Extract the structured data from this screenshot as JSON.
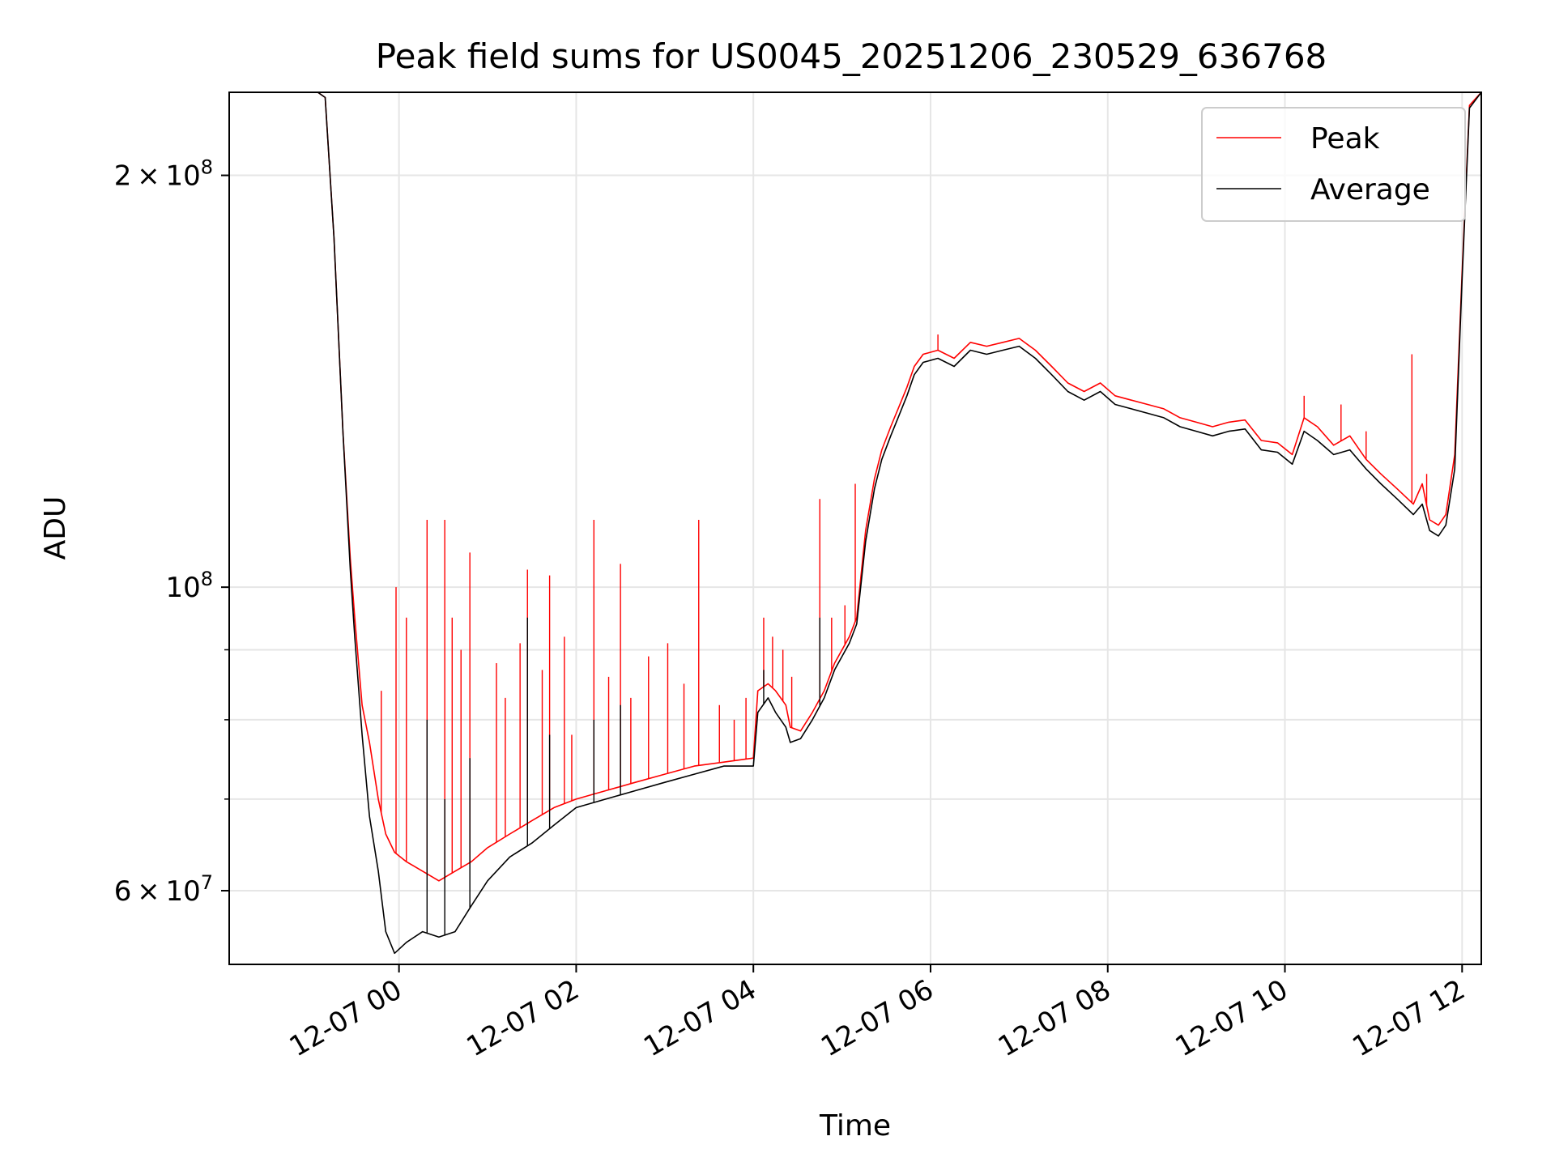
{
  "chart_data": {
    "type": "line",
    "title": "Peak field sums for US0045_20251206_230529_636768",
    "xlabel": "Time",
    "ylabel": "ADU",
    "yscale": "log",
    "xlim": [
      "12-06 22:05",
      "12-07 12:13"
    ],
    "ylim": [
      53000000,
      230000000
    ],
    "grid": true,
    "legend_position": "top-right",
    "x_ticks": [
      {
        "value": "12-07 00:00",
        "label": "12-07 00"
      },
      {
        "value": "12-07 02:00",
        "label": "12-07 02"
      },
      {
        "value": "12-07 04:00",
        "label": "12-07 04"
      },
      {
        "value": "12-07 06:00",
        "label": "12-07 06"
      },
      {
        "value": "12-07 08:00",
        "label": "12-07 08"
      },
      {
        "value": "12-07 10:00",
        "label": "12-07 10"
      },
      {
        "value": "12-07 12:00",
        "label": "12-07 12"
      }
    ],
    "y_ticks_major": [
      {
        "value": 60000000,
        "mantissa": "6",
        "exponent": "7"
      },
      {
        "value": 100000000,
        "mantissa": "",
        "exponent": "8"
      },
      {
        "value": 200000000,
        "mantissa": "2",
        "exponent": "8"
      }
    ],
    "y_ticks_minor": [
      70000000,
      80000000,
      90000000
    ],
    "series": [
      {
        "name": "Peak",
        "color": "#ff0000",
        "points": [
          [
            "12-06 23:05",
            230000000
          ],
          [
            "12-06 23:10",
            228000000
          ],
          [
            "12-06 23:16",
            180000000
          ],
          [
            "12-06 23:22",
            130000000
          ],
          [
            "12-06 23:27",
            105000000
          ],
          [
            "12-06 23:30",
            95000000
          ],
          [
            "12-06 23:35",
            82000000
          ],
          [
            "12-06 23:40",
            77000000
          ],
          [
            "12-06 23:46",
            70000000
          ],
          [
            "12-06 23:51",
            66000000
          ],
          [
            "12-06 23:57",
            64000000
          ],
          [
            "12-07 00:05",
            63000000
          ],
          [
            "12-07 00:16",
            62000000
          ],
          [
            "12-07 00:27",
            61000000
          ],
          [
            "12-07 00:38",
            62000000
          ],
          [
            "12-07 00:49",
            63000000
          ],
          [
            "12-07 01:00",
            64500000
          ],
          [
            "12-07 01:15",
            66000000
          ],
          [
            "12-07 01:30",
            67500000
          ],
          [
            "12-07 01:45",
            69000000
          ],
          [
            "12-07 02:00",
            70000000
          ],
          [
            "12-07 02:20",
            71000000
          ],
          [
            "12-07 02:40",
            72000000
          ],
          [
            "12-07 03:00",
            73000000
          ],
          [
            "12-07 03:20",
            74000000
          ],
          [
            "12-07 03:40",
            74500000
          ],
          [
            "12-07 04:00",
            75000000
          ],
          [
            "12-07 04:03",
            84000000
          ],
          [
            "12-07 04:10",
            85000000
          ],
          [
            "12-07 04:15",
            84000000
          ],
          [
            "12-07 04:22",
            82000000
          ],
          [
            "12-07 04:25",
            79000000
          ],
          [
            "12-07 04:32",
            78500000
          ],
          [
            "12-07 04:40",
            81000000
          ],
          [
            "12-07 04:48",
            84000000
          ],
          [
            "12-07 04:55",
            88000000
          ],
          [
            "12-07 05:05",
            92000000
          ],
          [
            "12-07 05:10",
            95000000
          ],
          [
            "12-07 05:16",
            110000000
          ],
          [
            "12-07 05:22",
            120000000
          ],
          [
            "12-07 05:27",
            126000000
          ],
          [
            "12-07 05:33",
            131000000
          ],
          [
            "12-07 05:38",
            135000000
          ],
          [
            "12-07 05:44",
            140000000
          ],
          [
            "12-07 05:49",
            145000000
          ],
          [
            "12-07 05:55",
            148000000
          ],
          [
            "12-07 06:05",
            149000000
          ],
          [
            "12-07 06:16",
            147000000
          ],
          [
            "12-07 06:27",
            151000000
          ],
          [
            "12-07 06:38",
            150000000
          ],
          [
            "12-07 06:49",
            151000000
          ],
          [
            "12-07 07:00",
            152000000
          ],
          [
            "12-07 07:11",
            149000000
          ],
          [
            "12-07 07:22",
            145000000
          ],
          [
            "12-07 07:33",
            141000000
          ],
          [
            "12-07 07:44",
            139000000
          ],
          [
            "12-07 07:55",
            141000000
          ],
          [
            "12-07 08:05",
            138000000
          ],
          [
            "12-07 08:16",
            137000000
          ],
          [
            "12-07 08:27",
            136000000
          ],
          [
            "12-07 08:38",
            135000000
          ],
          [
            "12-07 08:49",
            133000000
          ],
          [
            "12-07 09:00",
            132000000
          ],
          [
            "12-07 09:11",
            131000000
          ],
          [
            "12-07 09:22",
            132000000
          ],
          [
            "12-07 09:33",
            132500000
          ],
          [
            "12-07 09:44",
            128000000
          ],
          [
            "12-07 09:55",
            127500000
          ],
          [
            "12-07 10:05",
            125000000
          ],
          [
            "12-07 10:13",
            133000000
          ],
          [
            "12-07 10:22",
            131000000
          ],
          [
            "12-07 10:33",
            127000000
          ],
          [
            "12-07 10:44",
            129000000
          ],
          [
            "12-07 10:55",
            124000000
          ],
          [
            "12-07 11:05",
            121000000
          ],
          [
            "12-07 11:16",
            118000000
          ],
          [
            "12-07 11:27",
            115000000
          ],
          [
            "12-07 11:33",
            119000000
          ],
          [
            "12-07 11:38",
            112000000
          ],
          [
            "12-07 11:44",
            111000000
          ],
          [
            "12-07 11:49",
            113000000
          ],
          [
            "12-07 11:55",
            125000000
          ],
          [
            "12-07 12:00",
            170000000
          ],
          [
            "12-07 12:05",
            225000000
          ],
          [
            "12-07 12:13",
            230000000
          ]
        ],
        "spikes": [
          [
            "12-06 23:48",
            84000000
          ],
          [
            "12-06 23:58",
            100000000
          ],
          [
            "12-07 00:05",
            95000000
          ],
          [
            "12-07 00:19",
            112000000
          ],
          [
            "12-07 00:31",
            112000000
          ],
          [
            "12-07 00:36",
            95000000
          ],
          [
            "12-07 00:42",
            90000000
          ],
          [
            "12-07 00:48",
            106000000
          ],
          [
            "12-07 01:06",
            88000000
          ],
          [
            "12-07 01:12",
            83000000
          ],
          [
            "12-07 01:22",
            91000000
          ],
          [
            "12-07 01:27",
            103000000
          ],
          [
            "12-07 01:37",
            87000000
          ],
          [
            "12-07 01:42",
            102000000
          ],
          [
            "12-07 01:52",
            92000000
          ],
          [
            "12-07 01:57",
            78000000
          ],
          [
            "12-07 02:12",
            112000000
          ],
          [
            "12-07 02:22",
            86000000
          ],
          [
            "12-07 02:30",
            104000000
          ],
          [
            "12-07 02:37",
            83000000
          ],
          [
            "12-07 02:49",
            89000000
          ],
          [
            "12-07 03:02",
            91000000
          ],
          [
            "12-07 03:13",
            85000000
          ],
          [
            "12-07 03:23",
            112000000
          ],
          [
            "12-07 03:37",
            82000000
          ],
          [
            "12-07 03:47",
            80000000
          ],
          [
            "12-07 03:55",
            83000000
          ],
          [
            "12-07 04:07",
            95000000
          ],
          [
            "12-07 04:13",
            92000000
          ],
          [
            "12-07 04:20",
            90000000
          ],
          [
            "12-07 04:26",
            86000000
          ],
          [
            "12-07 04:45",
            116000000
          ],
          [
            "12-07 04:53",
            95000000
          ],
          [
            "12-07 05:02",
            97000000
          ],
          [
            "12-07 05:09",
            119000000
          ],
          [
            "12-07 06:05",
            153000000
          ],
          [
            "12-07 10:13",
            138000000
          ],
          [
            "12-07 10:38",
            136000000
          ],
          [
            "12-07 10:55",
            130000000
          ],
          [
            "12-07 11:26",
            148000000
          ],
          [
            "12-07 11:36",
            121000000
          ]
        ]
      },
      {
        "name": "Average",
        "color": "#000000",
        "points": [
          [
            "12-06 23:05",
            230000000
          ],
          [
            "12-06 23:10",
            228000000
          ],
          [
            "12-06 23:16",
            180000000
          ],
          [
            "12-06 23:22",
            130000000
          ],
          [
            "12-06 23:27",
            103000000
          ],
          [
            "12-06 23:30",
            92000000
          ],
          [
            "12-06 23:35",
            78000000
          ],
          [
            "12-06 23:40",
            68000000
          ],
          [
            "12-06 23:46",
            62000000
          ],
          [
            "12-06 23:51",
            56000000
          ],
          [
            "12-06 23:57",
            54000000
          ],
          [
            "12-07 00:05",
            55000000
          ],
          [
            "12-07 00:16",
            56000000
          ],
          [
            "12-07 00:27",
            55500000
          ],
          [
            "12-07 00:38",
            56000000
          ],
          [
            "12-07 00:49",
            58500000
          ],
          [
            "12-07 01:00",
            61000000
          ],
          [
            "12-07 01:15",
            63500000
          ],
          [
            "12-07 01:30",
            65000000
          ],
          [
            "12-07 01:45",
            67000000
          ],
          [
            "12-07 02:00",
            69000000
          ],
          [
            "12-07 02:20",
            70000000
          ],
          [
            "12-07 02:40",
            71000000
          ],
          [
            "12-07 03:00",
            72000000
          ],
          [
            "12-07 03:20",
            73000000
          ],
          [
            "12-07 03:40",
            74000000
          ],
          [
            "12-07 04:00",
            74000000
          ],
          [
            "12-07 04:03",
            81000000
          ],
          [
            "12-07 04:10",
            83000000
          ],
          [
            "12-07 04:15",
            81000000
          ],
          [
            "12-07 04:22",
            79000000
          ],
          [
            "12-07 04:25",
            77000000
          ],
          [
            "12-07 04:32",
            77500000
          ],
          [
            "12-07 04:40",
            80000000
          ],
          [
            "12-07 04:48",
            83000000
          ],
          [
            "12-07 04:55",
            87000000
          ],
          [
            "12-07 05:05",
            91000000
          ],
          [
            "12-07 05:10",
            94000000
          ],
          [
            "12-07 05:16",
            108000000
          ],
          [
            "12-07 05:22",
            118000000
          ],
          [
            "12-07 05:27",
            124000000
          ],
          [
            "12-07 05:33",
            129000000
          ],
          [
            "12-07 05:38",
            133000000
          ],
          [
            "12-07 05:44",
            138000000
          ],
          [
            "12-07 05:49",
            143000000
          ],
          [
            "12-07 05:55",
            146000000
          ],
          [
            "12-07 06:05",
            147000000
          ],
          [
            "12-07 06:16",
            145000000
          ],
          [
            "12-07 06:27",
            149000000
          ],
          [
            "12-07 06:38",
            148000000
          ],
          [
            "12-07 06:49",
            149000000
          ],
          [
            "12-07 07:00",
            150000000
          ],
          [
            "12-07 07:11",
            147000000
          ],
          [
            "12-07 07:22",
            143000000
          ],
          [
            "12-07 07:33",
            139000000
          ],
          [
            "12-07 07:44",
            137000000
          ],
          [
            "12-07 07:55",
            139000000
          ],
          [
            "12-07 08:05",
            136000000
          ],
          [
            "12-07 08:16",
            135000000
          ],
          [
            "12-07 08:27",
            134000000
          ],
          [
            "12-07 08:38",
            133000000
          ],
          [
            "12-07 08:49",
            131000000
          ],
          [
            "12-07 09:00",
            130000000
          ],
          [
            "12-07 09:11",
            129000000
          ],
          [
            "12-07 09:22",
            130000000
          ],
          [
            "12-07 09:33",
            130500000
          ],
          [
            "12-07 09:44",
            126000000
          ],
          [
            "12-07 09:55",
            125500000
          ],
          [
            "12-07 10:05",
            123000000
          ],
          [
            "12-07 10:13",
            130000000
          ],
          [
            "12-07 10:22",
            128000000
          ],
          [
            "12-07 10:33",
            125000000
          ],
          [
            "12-07 10:44",
            126000000
          ],
          [
            "12-07 10:55",
            122000000
          ],
          [
            "12-07 11:05",
            119000000
          ],
          [
            "12-07 11:16",
            116000000
          ],
          [
            "12-07 11:27",
            113000000
          ],
          [
            "12-07 11:33",
            115000000
          ],
          [
            "12-07 11:38",
            110000000
          ],
          [
            "12-07 11:44",
            109000000
          ],
          [
            "12-07 11:49",
            111000000
          ],
          [
            "12-07 11:55",
            122000000
          ],
          [
            "12-07 12:00",
            168000000
          ],
          [
            "12-07 12:05",
            224000000
          ],
          [
            "12-07 12:13",
            230000000
          ]
        ],
        "spikes": [
          [
            "12-07 00:19",
            80000000
          ],
          [
            "12-07 00:31",
            70000000
          ],
          [
            "12-07 00:48",
            75000000
          ],
          [
            "12-07 01:27",
            95000000
          ],
          [
            "12-07 01:42",
            78000000
          ],
          [
            "12-07 02:12",
            80000000
          ],
          [
            "12-07 02:30",
            82000000
          ],
          [
            "12-07 04:07",
            87000000
          ],
          [
            "12-07 04:45",
            95000000
          ]
        ]
      }
    ]
  }
}
